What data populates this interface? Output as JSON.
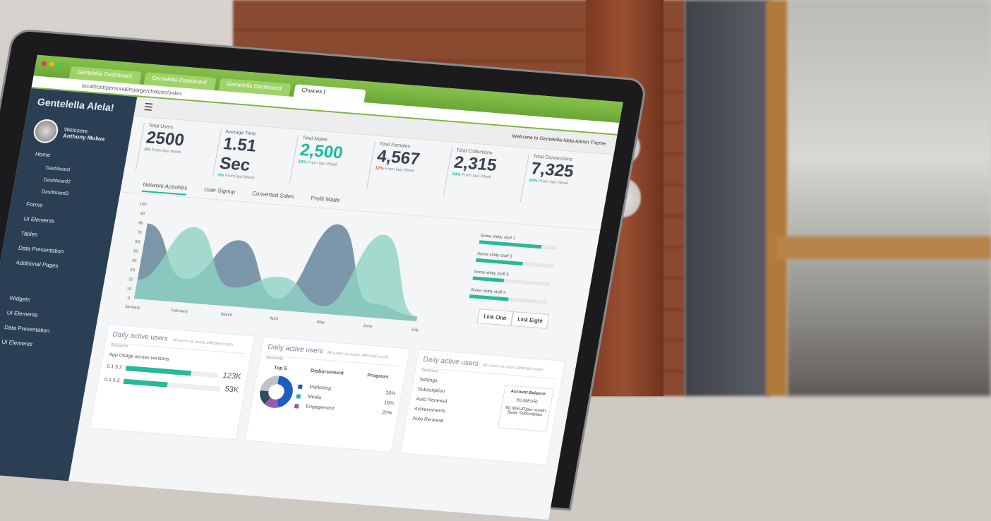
{
  "browser": {
    "tabs": [
      "Gentelella Dashboard",
      "Gentelella Dashboard",
      "Gentelella Dashboard",
      "Choices |"
    ],
    "url": "localhost/personal/mjorge/choices/index"
  },
  "sidebar": {
    "brand": "Gentelella Alela!",
    "welcome": "Welcome,",
    "user": "Anthony Mulwa",
    "items": [
      {
        "label": "Home",
        "sub": false
      },
      {
        "label": "Dashboard",
        "sub": true
      },
      {
        "label": "Dashboard2",
        "sub": true
      },
      {
        "label": "Dashboard3",
        "sub": true
      },
      {
        "label": "Forms",
        "sub": false
      },
      {
        "label": "UI Elements",
        "sub": false
      },
      {
        "label": "Tables",
        "sub": false
      },
      {
        "label": "Data Presentation",
        "sub": false
      },
      {
        "label": "Additional Pages",
        "sub": false
      },
      {
        "label": "Widgets",
        "sub": false
      },
      {
        "label": "UI Elements",
        "sub": false
      },
      {
        "label": "Data Presentation",
        "sub": false
      },
      {
        "label": "UI Elements",
        "sub": false
      }
    ]
  },
  "topnav": {
    "welcome": "Welcome to Gentelella Alela Admin Theme."
  },
  "tiles": [
    {
      "title": "Total Users",
      "value": "2500",
      "change": "4%",
      "note": "From last Week",
      "trend": "up"
    },
    {
      "title": "Average Time",
      "value": "1.51 Sec",
      "change": "3%",
      "note": "From last Week",
      "trend": "up"
    },
    {
      "title": "Total Males",
      "value": "2,500",
      "change": "34%",
      "note": "From last Week",
      "trend": "up"
    },
    {
      "title": "Total Females",
      "value": "4,567",
      "change": "12%",
      "note": "From last Week",
      "trend": "down"
    },
    {
      "title": "Total Collections",
      "value": "2,315",
      "change": "34%",
      "note": "From last Week",
      "trend": "up"
    },
    {
      "title": "Total Connections",
      "value": "7,325",
      "change": "34%",
      "note": "From last Week",
      "trend": "up"
    }
  ],
  "tabs": [
    "Network Activities",
    "User Signup",
    "Converted Sales",
    "Profit Made"
  ],
  "chart": {
    "months": [
      "January",
      "February",
      "March",
      "April",
      "May",
      "June",
      "July"
    ],
    "yticks": [
      "0",
      "10",
      "20",
      "30",
      "40",
      "50",
      "60",
      "70",
      "80",
      "90",
      "100"
    ],
    "series_dark": [
      80,
      25,
      70,
      12,
      95,
      15,
      5
    ],
    "series_light": [
      20,
      80,
      20,
      35,
      8,
      88,
      5
    ],
    "colors": {
      "dark": "#5d7f96",
      "light": "#8fd3c3",
      "mid": "#3f8f8a"
    }
  },
  "progress": [
    {
      "label": "Some shitty stuff 1",
      "value": 80
    },
    {
      "label": "Some shitty stuff 3",
      "value": 60
    },
    {
      "label": "Some shitty stuff 5",
      "value": 40
    },
    {
      "label": "Some shitty stuff 4",
      "value": 50
    }
  ],
  "links": [
    "Link One",
    "Link Eight"
  ],
  "panels": {
    "title": "Daily active users",
    "subtitle": "All users vs users affected crash",
    "sessions": "Sessions",
    "app_usage": {
      "title": "App Usage across versions",
      "rows": [
        {
          "version": "0.1.5.2",
          "value": "123K",
          "pct": 70
        },
        {
          "version": "0.1.5.3",
          "value": "53K",
          "pct": 45
        }
      ]
    },
    "top5": {
      "headers": [
        "Top 5",
        "Disbursement",
        "Progress"
      ],
      "rows": [
        {
          "label": "Marketing",
          "value": "30%",
          "color": "#1e5cbf"
        },
        {
          "label": "Media",
          "value": "10%",
          "color": "#26b99a"
        },
        {
          "label": "Engagement",
          "value": "20%",
          "color": "#9b59b6"
        }
      ]
    },
    "settings": {
      "items": [
        "Settings",
        "Subscription",
        "Auto Renewal",
        "Achievements",
        "Auto Renewal"
      ],
      "account_title": "Account Balance:",
      "balance": "€0.00EUR)",
      "plan": "€0.00EUR)per month",
      "plan_name": "Basic Subscription"
    }
  }
}
